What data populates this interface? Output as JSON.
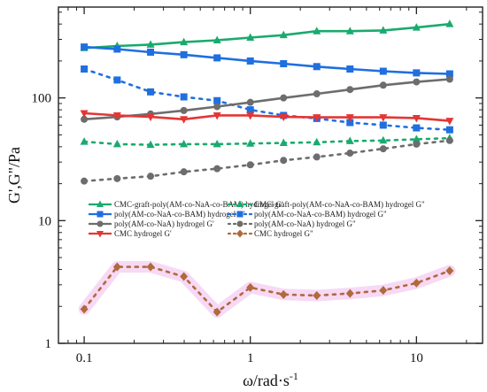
{
  "chart_data": {
    "type": "line",
    "xlabel": "ω/rad·s",
    "xlabel_superscript": "-1",
    "ylabel": "G',G\"/Pa",
    "x_scale": "log",
    "y_scale": "log",
    "xlim": [
      0.07,
      25
    ],
    "ylim": [
      1,
      550
    ],
    "x_ticks": [
      0.1,
      1,
      10
    ],
    "x_tick_labels": [
      "0.1",
      "1",
      "10"
    ],
    "y_ticks": [
      1,
      10,
      100
    ],
    "y_tick_labels": [
      "1",
      "10",
      "100"
    ],
    "grid": false,
    "legend_position": "lower-left",
    "x": [
      0.1,
      0.158,
      0.251,
      0.398,
      0.631,
      1,
      1.585,
      2.512,
      3.981,
      6.31,
      10,
      15.85
    ],
    "series": [
      {
        "name": "CMC-graft-poly(AM-co-NaA-co-BAM) hydrogel G'",
        "legend_label": "CMC-graft-poly(AM-co-NaA-co-BAM) hydrogel G'",
        "color": "#1aaa6e",
        "marker": "triangle",
        "line": "solid",
        "values": [
          255,
          265,
          272,
          285,
          295,
          310,
          325,
          350,
          350,
          355,
          375,
          400
        ]
      },
      {
        "name": "CMC-graft-poly(AM-co-NaA-co-BAM) hydrogel G\"",
        "legend_label": "CMC-graft-poly(AM-co-NaA-co-BAM) hydrogel G\"",
        "color": "#1aaa6e",
        "marker": "triangle",
        "line": "dotted",
        "values": [
          44,
          42,
          41.5,
          42,
          42,
          42.5,
          43,
          43.5,
          44.5,
          45,
          46,
          47
        ]
      },
      {
        "name": "poly(AM-co-NaA-co-BAM) hydrogel G'",
        "legend_label": "poly(AM-co-NaA-co-BAM) hydrogel G'",
        "color": "#1f6fe0",
        "marker": "square",
        "line": "solid",
        "values": [
          260,
          250,
          236,
          225,
          212,
          200,
          190,
          180,
          172,
          165,
          160,
          157
        ]
      },
      {
        "name": "poly(AM-co-NaA-co-BAM) hydrogel G\"",
        "legend_label": "poly(AM-co-NaA-co-BAM) hydrogel G\"",
        "color": "#1f6fe0",
        "marker": "square",
        "line": "dotted",
        "values": [
          172,
          140,
          112,
          102,
          95,
          80,
          72,
          68,
          63,
          60,
          57,
          55
        ]
      },
      {
        "name": "poly(AM-co-NaA) hydrogel G'",
        "legend_label": "poly(AM-co-NaA) hydrogel G'",
        "color": "#6d6d6d",
        "marker": "circle",
        "line": "solid",
        "values": [
          67,
          70,
          74,
          79,
          85,
          92,
          100,
          108,
          117,
          127,
          135,
          142
        ]
      },
      {
        "name": "poly(AM-co-NaA) hydrogel G\"",
        "legend_label": "poly(AM-co-NaA) hydrogel G\"",
        "color": "#6d6d6d",
        "marker": "circle",
        "line": "dotted",
        "values": [
          21,
          22,
          23,
          25,
          26.5,
          28.5,
          31,
          33,
          35.5,
          38.5,
          42,
          45
        ]
      },
      {
        "name": "CMC hydrogel G'",
        "legend_label": "CMC hydrogel G'",
        "color": "#e53535",
        "marker": "triangle-down",
        "line": "solid",
        "values": [
          75,
          72,
          70,
          67,
          72,
          72,
          70,
          69.5,
          69.5,
          69.5,
          68.5,
          65
        ]
      },
      {
        "name": "CMC hydrogel G\"",
        "legend_label": "CMC hydrogel G\"",
        "color": "#b06a3c",
        "marker": "diamond",
        "line": "dotted",
        "values": [
          1.9,
          4.2,
          4.2,
          3.5,
          1.8,
          2.85,
          2.5,
          2.45,
          2.55,
          2.7,
          3.1,
          3.9
        ]
      }
    ]
  }
}
